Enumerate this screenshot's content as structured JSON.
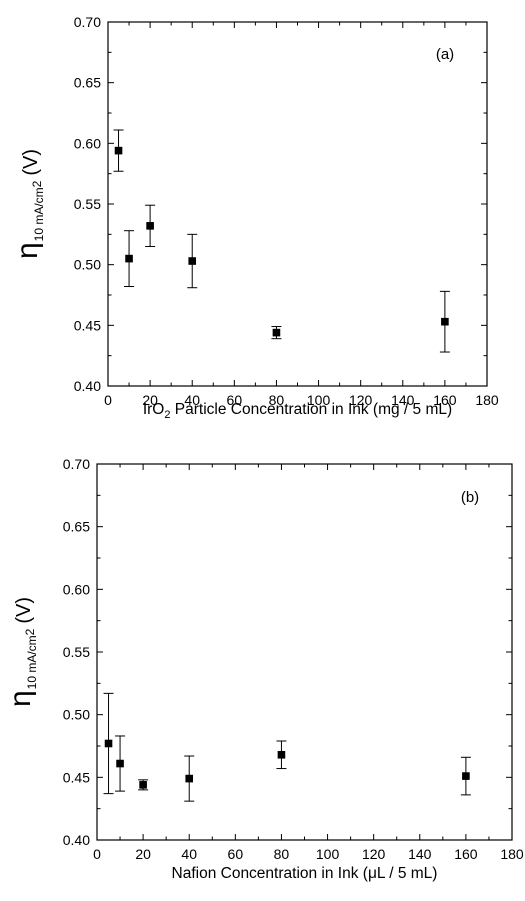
{
  "chart_data": [
    {
      "type": "scatter",
      "panel_label": "(a)",
      "xlabel": {
        "prefix": "IrO",
        "sub": "2",
        "suffix": " Particle Concentration in Ink (mg / 5 mL)"
      },
      "ylabel": {
        "symbol": "η",
        "sub": "10 mA/cm",
        "sup": "2",
        "unit": "(V)"
      },
      "xlim": [
        0,
        180
      ],
      "ylim": [
        0.4,
        0.7
      ],
      "xticks": [
        "0",
        "20",
        "40",
        "60",
        "80",
        "100",
        "120",
        "140",
        "160",
        "180"
      ],
      "yticks": [
        "0.40",
        "0.45",
        "0.50",
        "0.55",
        "0.60",
        "0.65",
        "0.70"
      ],
      "grid": false,
      "points": [
        {
          "x": 5,
          "y": 0.594,
          "err": 0.017
        },
        {
          "x": 10,
          "y": 0.505,
          "err": 0.023
        },
        {
          "x": 20,
          "y": 0.532,
          "err": 0.017
        },
        {
          "x": 40,
          "y": 0.503,
          "err": 0.022
        },
        {
          "x": 80,
          "y": 0.444,
          "err": 0.005
        },
        {
          "x": 160,
          "y": 0.453,
          "err": 0.025
        }
      ]
    },
    {
      "type": "scatter",
      "panel_label": "(b)",
      "xlabel": {
        "prefix": "Nafion Concentration in Ink (μL / 5 mL)",
        "sub": "",
        "suffix": ""
      },
      "ylabel": {
        "symbol": "η",
        "sub": "10 mA/cm",
        "sup": "2",
        "unit": "(V)"
      },
      "xlim": [
        0,
        180
      ],
      "ylim": [
        0.4,
        0.7
      ],
      "xticks": [
        "0",
        "20",
        "40",
        "60",
        "80",
        "100",
        "120",
        "140",
        "160",
        "180"
      ],
      "yticks": [
        "0.40",
        "0.45",
        "0.50",
        "0.55",
        "0.60",
        "0.65",
        "0.70"
      ],
      "grid": false,
      "points": [
        {
          "x": 5,
          "y": 0.477,
          "err": 0.04
        },
        {
          "x": 10,
          "y": 0.461,
          "err": 0.022
        },
        {
          "x": 20,
          "y": 0.444,
          "err": 0.004
        },
        {
          "x": 40,
          "y": 0.449,
          "err": 0.018
        },
        {
          "x": 80,
          "y": 0.468,
          "err": 0.011
        },
        {
          "x": 160,
          "y": 0.451,
          "err": 0.015
        }
      ]
    }
  ]
}
